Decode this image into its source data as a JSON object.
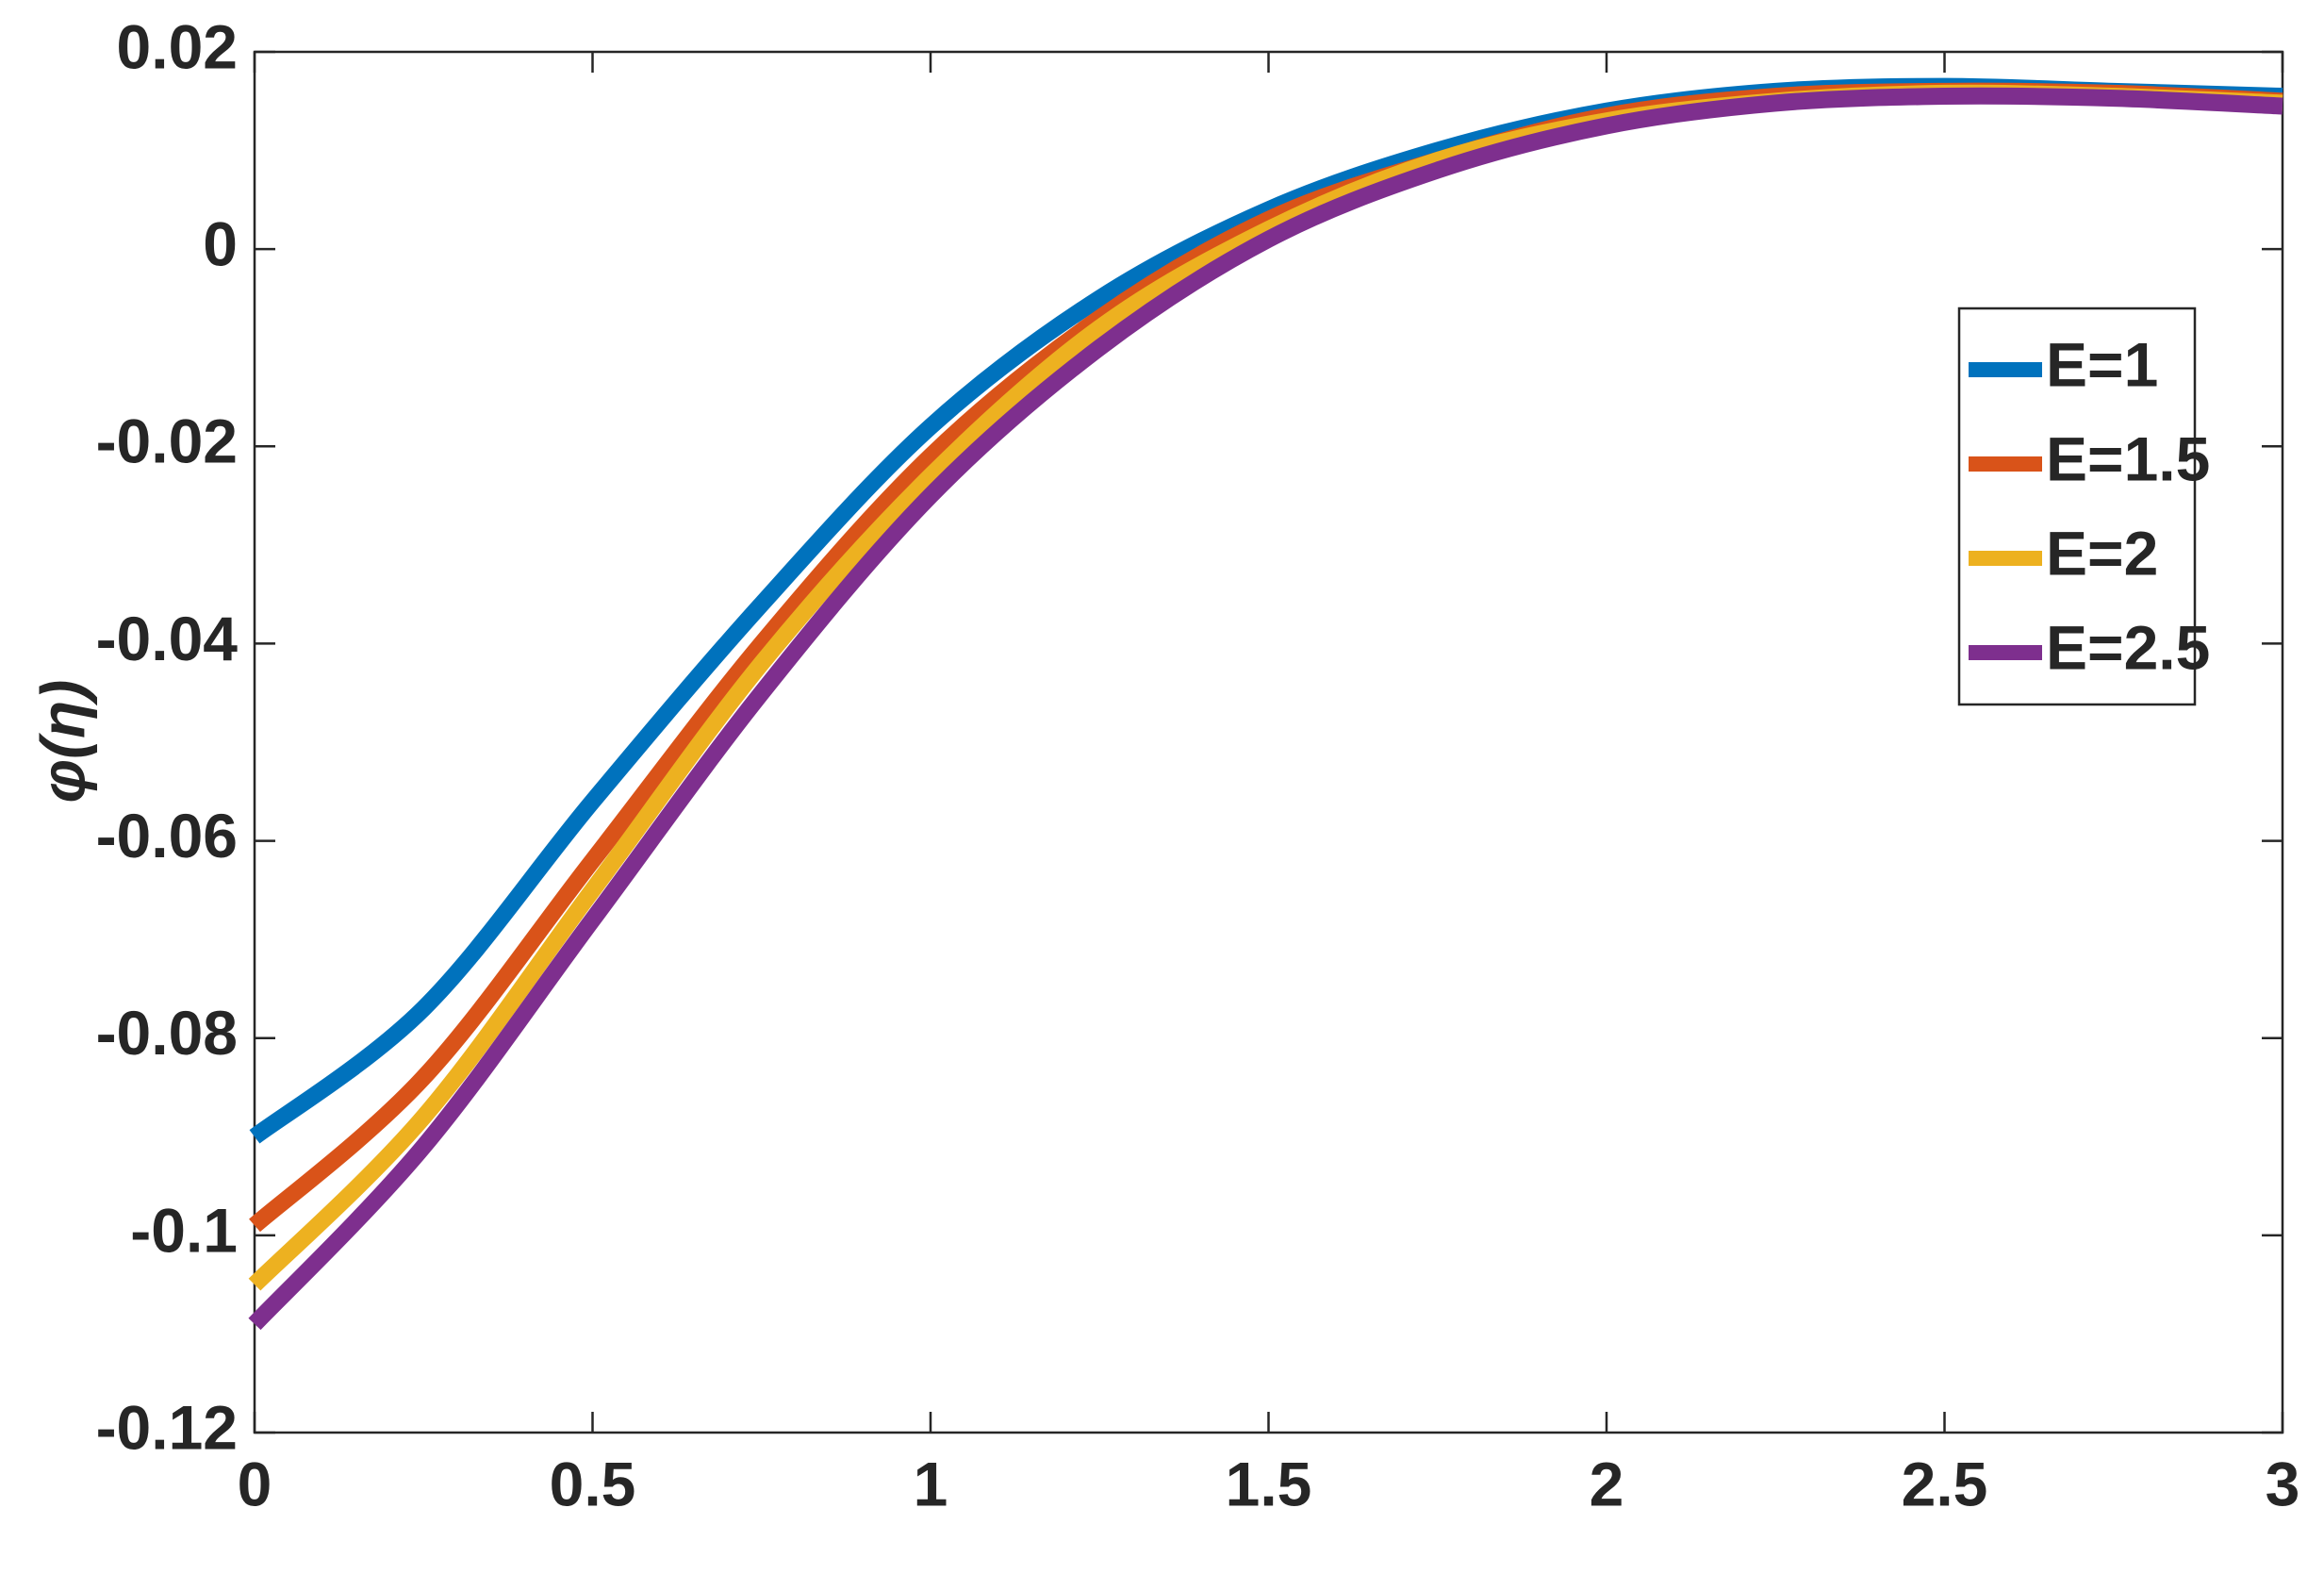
{
  "chart_data": {
    "type": "line",
    "ylabel": "φ(η)",
    "x": [
      0,
      0.25,
      0.5,
      0.75,
      1,
      1.25,
      1.5,
      1.75,
      2,
      2.25,
      2.5,
      2.75,
      3
    ],
    "series": [
      {
        "name": "E=1",
        "color": "#0072bd",
        "values": [
          -0.09,
          -0.077,
          -0.056,
          -0.036,
          -0.018,
          -0.005,
          0.004,
          0.01,
          0.014,
          0.016,
          0.0165,
          0.016,
          0.0155
        ]
      },
      {
        "name": "E=1.5",
        "color": "#d95319",
        "values": [
          -0.099,
          -0.084,
          -0.062,
          -0.04,
          -0.021,
          -0.007,
          0.003,
          0.009,
          0.0135,
          0.0155,
          0.016,
          0.0158,
          0.015
        ]
      },
      {
        "name": "E=2",
        "color": "#edb120",
        "values": [
          -0.105,
          -0.088,
          -0.065,
          -0.042,
          -0.023,
          -0.008,
          0.002,
          0.009,
          0.013,
          0.015,
          0.0158,
          0.0155,
          0.0148
        ]
      },
      {
        "name": "E=2.5",
        "color": "#7e2f8e",
        "values": [
          -0.109,
          -0.091,
          -0.068,
          -0.045,
          -0.025,
          -0.01,
          0.001,
          0.008,
          0.0125,
          0.0148,
          0.0155,
          0.0153,
          0.0145
        ]
      }
    ],
    "xlim": [
      0,
      3
    ],
    "xticks": [
      0,
      0.5,
      1,
      1.5,
      2,
      2.5,
      3
    ],
    "ylim": [
      -0.12,
      0.02
    ],
    "yticks": [
      -0.12,
      -0.1,
      -0.08,
      -0.06,
      -0.04,
      -0.02,
      0,
      0.02
    ],
    "grid": false,
    "legend": "upper right"
  }
}
